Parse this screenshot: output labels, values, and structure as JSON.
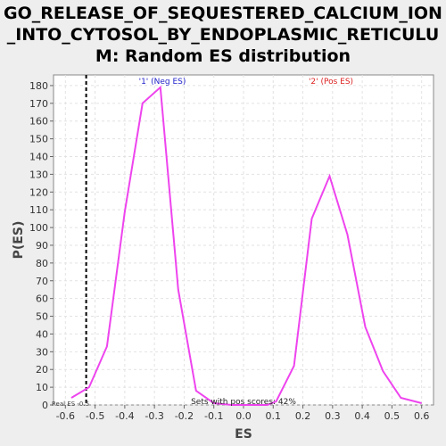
{
  "chart_data": {
    "type": "line",
    "title_lines": [
      "GO_RELEASE_OF_SEQUESTERED_CALCIUM_ION",
      "_INTO_CYTOSOL_BY_ENDOPLASMIC_RETICULU",
      "M: Random ES distribution"
    ],
    "xlabel": "ES",
    "ylabel": "P(ES)",
    "xlim": [
      -0.64,
      0.64
    ],
    "ylim": [
      0,
      186
    ],
    "xticks": [
      -0.6,
      -0.5,
      -0.4,
      -0.3,
      -0.2,
      -0.1,
      0.0,
      0.1,
      0.2,
      0.3,
      0.4,
      0.5,
      0.6
    ],
    "xtick_labels": [
      "-0.6",
      "-0.5",
      "-0.4",
      "-0.3",
      "-0.2",
      "-0.1",
      "0.0",
      "0.1",
      "0.2",
      "0.3",
      "0.4",
      "0.5",
      "0.6"
    ],
    "yticks": [
      0,
      10,
      20,
      30,
      40,
      50,
      60,
      70,
      80,
      90,
      100,
      110,
      120,
      130,
      140,
      150,
      160,
      170,
      180
    ],
    "grid": true,
    "series": [
      {
        "color": "#ee44ee",
        "x": [
          -0.58,
          -0.52,
          -0.46,
          -0.4,
          -0.34,
          -0.28,
          -0.22,
          -0.16,
          -0.1,
          -0.04,
          0.02,
          0.08,
          0.11,
          0.17,
          0.23,
          0.29,
          0.35,
          0.41,
          0.47,
          0.53,
          0.6
        ],
        "y": [
          4,
          10,
          33,
          109,
          170,
          179,
          65,
          8,
          1,
          0,
          0,
          0,
          2,
          22,
          105,
          129,
          96,
          44,
          19,
          4,
          1
        ]
      }
    ],
    "real_es": {
      "x": -0.53,
      "label": "Real ES -0.5"
    },
    "annotations": {
      "neg_label": "'1' (Neg ES)",
      "pos_label": "'2' (Pos ES)",
      "neg_color": "#2222cc",
      "pos_color": "#dd2222",
      "sets_pos": "Sets with pos scores: 42%"
    }
  }
}
